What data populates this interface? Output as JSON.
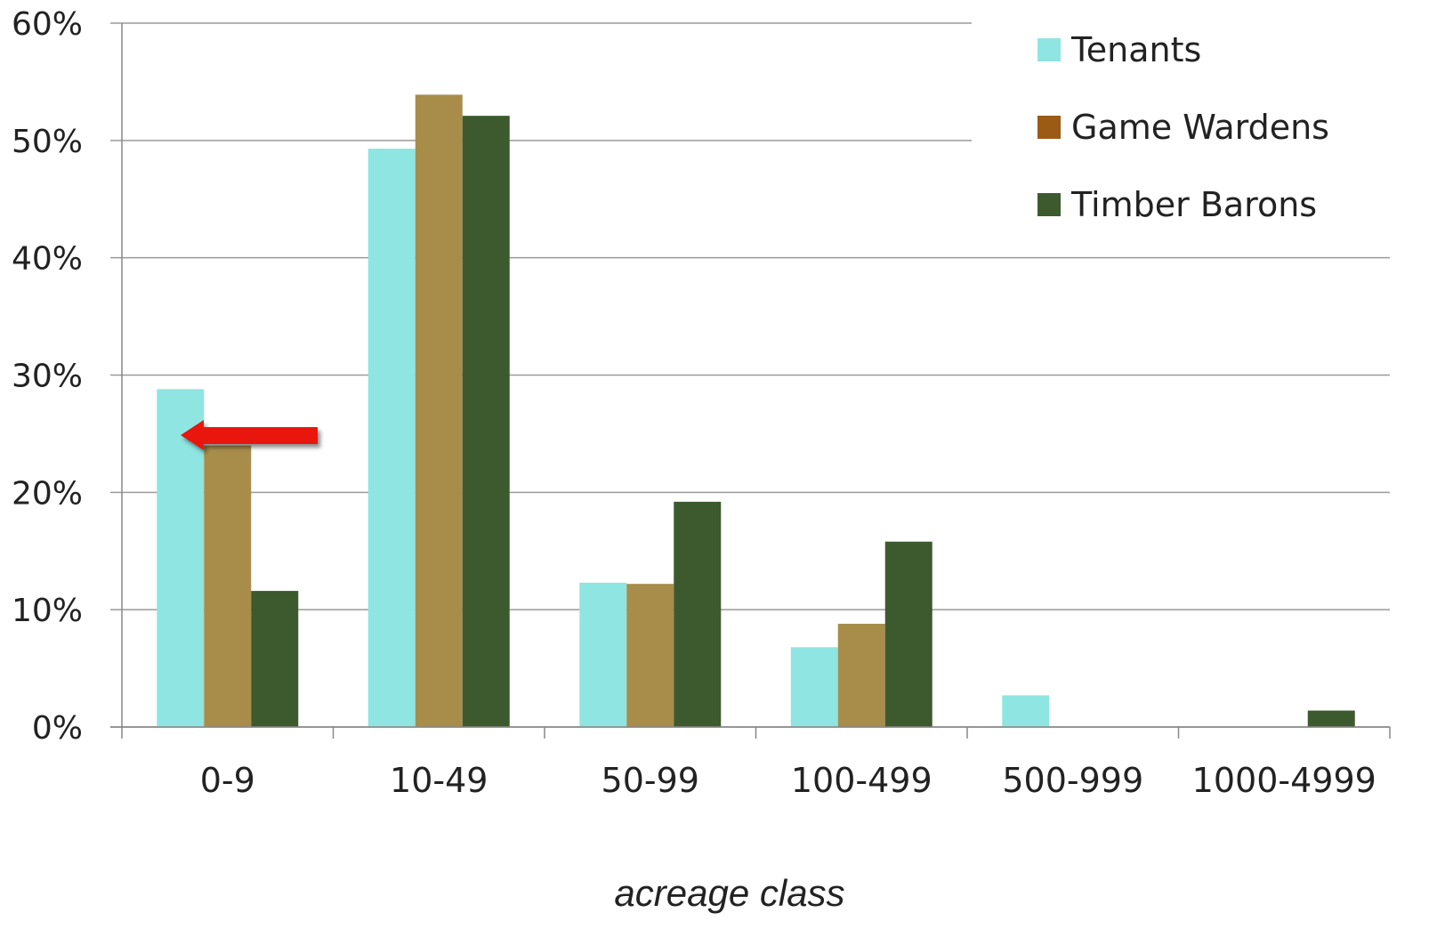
{
  "chart_data": {
    "type": "bar",
    "title": "",
    "xlabel": "acreage class",
    "ylabel": "",
    "ylim": [
      0,
      60
    ],
    "yticks": [
      "0%",
      "10%",
      "20%",
      "30%",
      "40%",
      "50%",
      "60%"
    ],
    "grid": true,
    "legend_position": "top-right",
    "categories": [
      "0-9",
      "10-49",
      "50-99",
      "100-499",
      "500-999",
      "1000-4999"
    ],
    "series": [
      {
        "name": "Tenants",
        "color": "#8FE5E1",
        "values": [
          28.8,
          49.3,
          12.3,
          6.8,
          2.7,
          0
        ]
      },
      {
        "name": "Game Wardens",
        "color": "#A88D4A",
        "legend_color": "#9B5A16",
        "values": [
          24.0,
          53.9,
          12.2,
          8.8,
          0,
          0
        ]
      },
      {
        "name": "Timber Barons",
        "color": "#3D5A2F",
        "values": [
          11.6,
          52.1,
          19.2,
          15.8,
          0,
          1.4
        ]
      }
    ],
    "annotations": [
      {
        "type": "arrow",
        "color": "#E8120C",
        "direction": "left",
        "points_to": {
          "category": "0-9",
          "series": "Tenants"
        }
      }
    ]
  }
}
